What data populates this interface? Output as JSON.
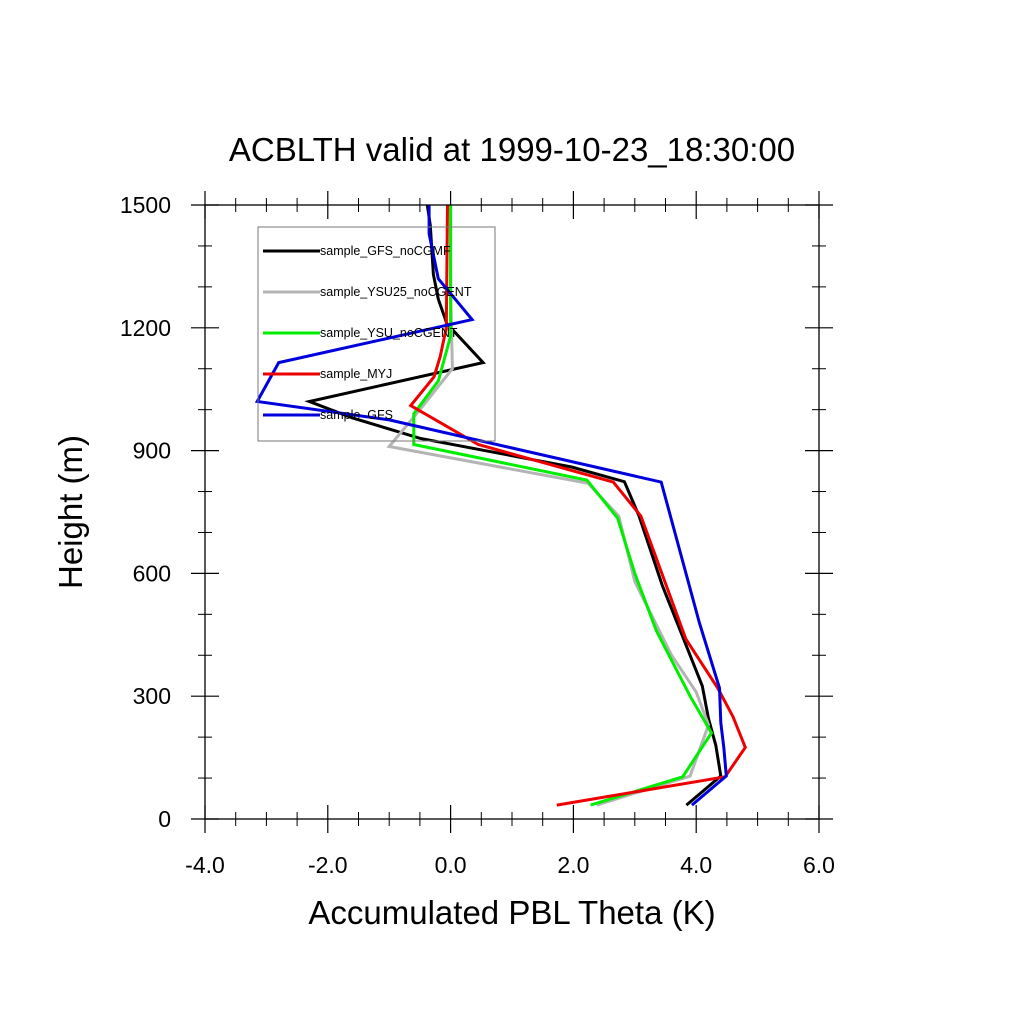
{
  "chart_data": {
    "type": "line",
    "title": "ACBLTH valid at 1999-10-23_18:30:00",
    "xlabel": "Accumulated PBL Theta (K)",
    "ylabel": "Height (m)",
    "xlim": [
      -4.0,
      6.0
    ],
    "ylim": [
      0,
      1500
    ],
    "xticks": [
      -4.0,
      -2.0,
      0.0,
      2.0,
      4.0,
      6.0
    ],
    "xtick_labels": [
      "-4.0",
      "-2.0",
      "0.0",
      "2.0",
      "4.0",
      "6.0"
    ],
    "yticks": [
      0,
      300,
      600,
      900,
      1200,
      1500
    ],
    "ytick_labels": [
      "0",
      "300",
      "600",
      "900",
      "1200",
      "1500"
    ],
    "grid": false,
    "legend_position": "top-left",
    "series": [
      {
        "name": "sample_GFS_noCGMF",
        "color": "#000000",
        "points": [
          [
            3.84,
            34
          ],
          [
            4.4,
            105
          ],
          [
            4.32,
            180
          ],
          [
            4.2,
            245
          ],
          [
            4.1,
            325
          ],
          [
            3.9,
            400
          ],
          [
            3.45,
            570
          ],
          [
            3.07,
            740
          ],
          [
            2.83,
            824
          ],
          [
            1.97,
            860
          ],
          [
            -0.5,
            930
          ],
          [
            -1.6,
            980
          ],
          [
            -2.3,
            1020
          ],
          [
            0.53,
            1115
          ],
          [
            -0.06,
            1210
          ],
          [
            -0.2,
            1270
          ],
          [
            -0.28,
            1330
          ],
          [
            -0.33,
            1450
          ],
          [
            -0.38,
            1500
          ]
        ]
      },
      {
        "name": "sample_YSU25_noCGENT",
        "color": "#b4b4b4",
        "points": [
          [
            2.38,
            34
          ],
          [
            3.9,
            105
          ],
          [
            4.2,
            230
          ],
          [
            4.0,
            310
          ],
          [
            3.6,
            400
          ],
          [
            3.0,
            580
          ],
          [
            2.74,
            740
          ],
          [
            2.24,
            820
          ],
          [
            -1.0,
            910
          ],
          [
            -0.5,
            1000
          ],
          [
            0.03,
            1100
          ],
          [
            0.0,
            1300
          ],
          [
            0.0,
            1500
          ]
        ]
      },
      {
        "name": "sample_YSU_noCGENT",
        "color": "#00ee00",
        "points": [
          [
            2.28,
            34
          ],
          [
            3.78,
            103
          ],
          [
            4.25,
            210
          ],
          [
            3.9,
            300
          ],
          [
            3.35,
            460
          ],
          [
            3.0,
            600
          ],
          [
            2.72,
            735
          ],
          [
            2.22,
            828
          ],
          [
            -0.6,
            915
          ],
          [
            -0.6,
            990
          ],
          [
            -0.2,
            1070
          ],
          [
            0.0,
            1180
          ],
          [
            0.0,
            1500
          ]
        ]
      },
      {
        "name": "sample_MYJ",
        "color": "#ee0000",
        "points": [
          [
            1.73,
            34
          ],
          [
            4.47,
            103
          ],
          [
            4.8,
            175
          ],
          [
            4.6,
            250
          ],
          [
            4.35,
            320
          ],
          [
            3.83,
            440
          ],
          [
            3.1,
            740
          ],
          [
            2.65,
            823
          ],
          [
            0.45,
            915
          ],
          [
            -0.65,
            1010
          ],
          [
            -0.27,
            1080
          ],
          [
            -0.17,
            1130
          ],
          [
            -0.07,
            1200
          ],
          [
            -0.05,
            1500
          ]
        ]
      },
      {
        "name": "sample_GFS",
        "color": "#0000dd",
        "points": [
          [
            3.93,
            34
          ],
          [
            4.49,
            105
          ],
          [
            4.45,
            175
          ],
          [
            4.4,
            235
          ],
          [
            4.38,
            320
          ],
          [
            4.05,
            480
          ],
          [
            3.43,
            823
          ],
          [
            -1.0,
            975
          ],
          [
            -3.15,
            1020
          ],
          [
            -2.8,
            1115
          ],
          [
            0.35,
            1220
          ],
          [
            -0.2,
            1320
          ],
          [
            -0.35,
            1430
          ],
          [
            -0.35,
            1500
          ]
        ]
      }
    ]
  }
}
